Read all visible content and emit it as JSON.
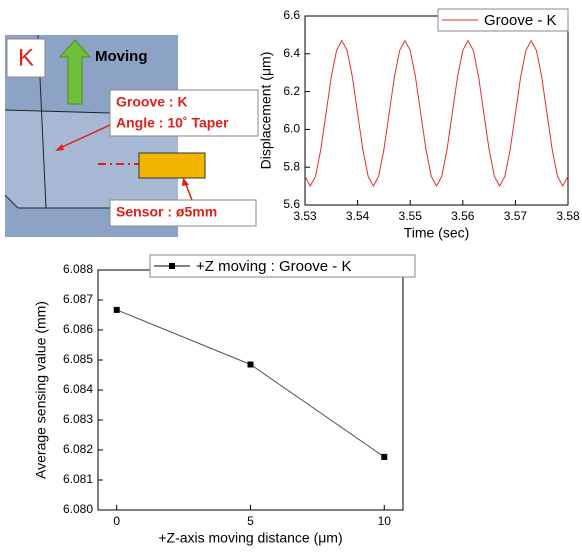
{
  "diagram": {
    "badge": "K",
    "motion": "Moving",
    "groove": "Groove  : K",
    "angle": "Angle : 10˚ Taper",
    "sensor": "Sensor : ø5mm"
  },
  "chart_data": [
    {
      "type": "line",
      "x_label": "Time (sec)",
      "y_label": "Displacement (μm)",
      "x": [
        3.53,
        3.531,
        3.532,
        3.533,
        3.534,
        3.535,
        3.536,
        3.537,
        3.538,
        3.539,
        3.54,
        3.541,
        3.542,
        3.543,
        3.544,
        3.545,
        3.546,
        3.547,
        3.548,
        3.549,
        3.55,
        3.551,
        3.552,
        3.553,
        3.554,
        3.555,
        3.556,
        3.557,
        3.558,
        3.559,
        3.56,
        3.561,
        3.562,
        3.563,
        3.564,
        3.565,
        3.566,
        3.567,
        3.568,
        3.569,
        3.57,
        3.571,
        3.572,
        3.573,
        3.574,
        3.575,
        3.576,
        3.577,
        3.578,
        3.579,
        3.58
      ],
      "series": [
        {
          "name": "Groove - K",
          "color": "#e03030",
          "values": [
            5.752,
            5.7,
            5.752,
            5.893,
            6.085,
            6.278,
            6.418,
            6.47,
            6.418,
            6.278,
            6.085,
            5.893,
            5.752,
            5.7,
            5.752,
            5.893,
            6.085,
            6.278,
            6.418,
            6.47,
            6.418,
            6.278,
            6.085,
            5.893,
            5.752,
            5.7,
            5.752,
            5.893,
            6.085,
            6.278,
            6.418,
            6.47,
            6.418,
            6.278,
            6.085,
            5.893,
            5.752,
            5.7,
            5.752,
            5.893,
            6.085,
            6.278,
            6.418,
            6.47,
            6.418,
            6.278,
            6.085,
            5.893,
            5.752,
            5.7,
            5.752
          ]
        }
      ],
      "xlim": [
        3.53,
        3.58
      ],
      "ylim": [
        5.6,
        6.6
      ],
      "xticks": [
        3.53,
        3.54,
        3.55,
        3.56,
        3.57,
        3.58
      ],
      "yticks": [
        5.6,
        5.8,
        {
          "value": 6,
          "label": "6.0"
        },
        6.2,
        6.4,
        6.6
      ],
      "markers": false
    },
    {
      "type": "line",
      "x_label": "+Z-axis moving distance (μm)",
      "y_label": "Average sensing value (mm)",
      "x": [
        0,
        5,
        10
      ],
      "series": [
        {
          "name": "+Z moving : Groove - K",
          "color": "#000000",
          "values": [
            6.08667,
            6.08485,
            6.08177
          ]
        }
      ],
      "xlim": [
        -0.7,
        10.7
      ],
      "ylim": [
        6.08,
        6.088
      ],
      "xticks": [
        0,
        5,
        10
      ],
      "yticks": [
        {
          "value": 6.08,
          "label": "6.080"
        },
        6.081,
        6.082,
        6.083,
        6.084,
        6.085,
        6.086,
        6.087,
        6.088
      ],
      "markers": true
    }
  ]
}
